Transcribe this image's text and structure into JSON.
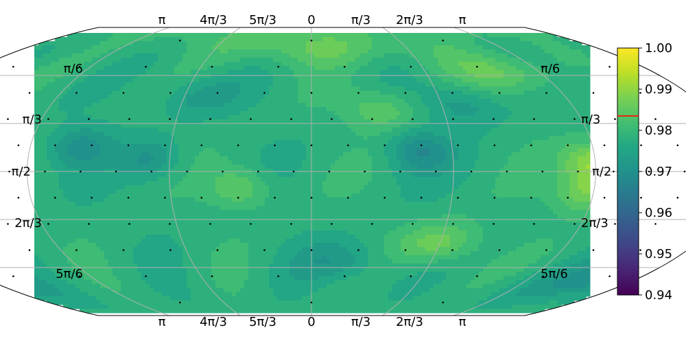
{
  "chart_data": {
    "type": "heatmap",
    "projection": "kavrayskiy-vii",
    "title": "",
    "grid": true,
    "markers": "black dots on a regular sphere grid",
    "top_tick_labels": [
      "π",
      "4π/3",
      "5π/3",
      "0",
      "π/3",
      "2π/3",
      "π"
    ],
    "bottom_tick_labels": [
      "π",
      "4π/3",
      "5π/3",
      "0",
      "π/3",
      "2π/3",
      "π"
    ],
    "left_tick_labels": [
      "π/6",
      "π/3",
      "π/2",
      "2π/3",
      "5π/6"
    ],
    "right_tick_labels": [
      "π/6",
      "π/3",
      "π/2",
      "2π/3",
      "5π/6"
    ],
    "colorbar": {
      "colormap": "viridis",
      "range": [
        0.94,
        1.0
      ],
      "tick_labels": [
        "1.00",
        "0.99",
        "0.98",
        "0.97",
        "0.96",
        "0.95",
        "0.94"
      ],
      "tick_values": [
        1.0,
        0.99,
        0.98,
        0.97,
        0.96,
        0.95,
        0.94
      ],
      "marker_value": 0.9835,
      "marker_color": "#e8280c"
    },
    "field": {
      "baseline": 0.978,
      "hotspots": [
        {
          "phi": 3.0,
          "theta": 2.09,
          "value": 0.991
        },
        {
          "phi": 3.25,
          "theta": 1.5,
          "value": 0.989
        },
        {
          "phi": 3.4,
          "theta": 1.07,
          "value": 0.988
        },
        {
          "phi": 2.09,
          "theta": 1.48,
          "value": 0.991
        },
        {
          "phi": 2.05,
          "theta": 1.8,
          "value": 0.988
        },
        {
          "phi": 1.05,
          "theta": 2.35,
          "value": 0.987
        },
        {
          "phi": 5.75,
          "theta": 1.75,
          "value": 0.986
        },
        {
          "phi": 0.0,
          "theta": 0.2,
          "value": 0.985
        },
        {
          "phi": 0.55,
          "theta": 0.9,
          "value": 0.985
        },
        {
          "phi": 1.75,
          "theta": 0.5,
          "value": 0.986
        }
      ],
      "coldspots": [
        {
          "phi": 2.9,
          "theta": 2.72,
          "value": 0.968
        },
        {
          "phi": 0.8,
          "theta": 1.35,
          "value": 0.969
        },
        {
          "phi": 5.1,
          "theta": 1.45,
          "value": 0.971
        },
        {
          "phi": 4.55,
          "theta": 1.3,
          "value": 0.97
        },
        {
          "phi": 0.25,
          "theta": 2.55,
          "value": 0.972
        },
        {
          "phi": 5.35,
          "theta": 0.75,
          "value": 0.973
        },
        {
          "phi": 1.2,
          "theta": 0.85,
          "value": 0.972
        },
        {
          "phi": 2.7,
          "theta": 0.7,
          "value": 0.972
        }
      ]
    }
  }
}
